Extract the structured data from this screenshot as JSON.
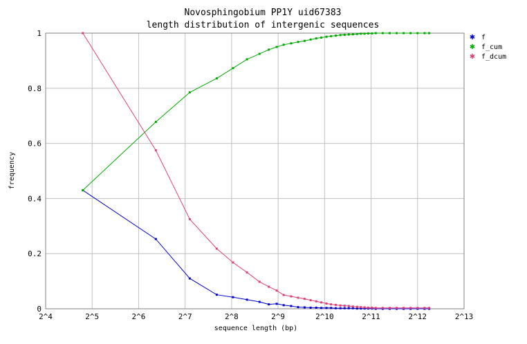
{
  "chart_data": {
    "type": "line",
    "title": "Novosphingobium PP1Y uid67383",
    "subtitle": "length distribution of intergenic sequences",
    "xlabel": "sequence length (bp)",
    "ylabel": "frequency",
    "x_scale": "log2",
    "xlim_log2": [
      4,
      13
    ],
    "ylim": [
      0,
      1
    ],
    "grid": true,
    "legend_position": "right",
    "x_ticks": [
      {
        "v": 4,
        "label": "2^4"
      },
      {
        "v": 5,
        "label": "2^5"
      },
      {
        "v": 6,
        "label": "2^6"
      },
      {
        "v": 7,
        "label": "2^7"
      },
      {
        "v": 8,
        "label": "2^8"
      },
      {
        "v": 9,
        "label": "2^9"
      },
      {
        "v": 10,
        "label": "2^10"
      },
      {
        "v": 11,
        "label": "2^11"
      },
      {
        "v": 12,
        "label": "2^12"
      },
      {
        "v": 13,
        "label": "2^13"
      }
    ],
    "y_ticks": [
      {
        "v": 0,
        "label": "0"
      },
      {
        "v": 0.2,
        "label": "0.2"
      },
      {
        "v": 0.4,
        "label": "0.4"
      },
      {
        "v": 0.6,
        "label": "0.6"
      },
      {
        "v": 0.8,
        "label": "0.8"
      },
      {
        "v": 1,
        "label": "1"
      }
    ],
    "series": [
      {
        "name": "f",
        "color": "#0000cc",
        "points": [
          [
            4.8,
            0.43
          ],
          [
            6.37,
            0.253
          ],
          [
            7.1,
            0.11
          ],
          [
            7.68,
            0.051
          ],
          [
            8.03,
            0.042
          ],
          [
            8.33,
            0.033
          ],
          [
            8.6,
            0.025
          ],
          [
            8.8,
            0.016
          ],
          [
            8.97,
            0.018
          ],
          [
            9.12,
            0.013
          ],
          [
            9.28,
            0.01
          ],
          [
            9.43,
            0.006
          ],
          [
            9.57,
            0.005
          ],
          [
            9.7,
            0.004
          ],
          [
            9.82,
            0.004
          ],
          [
            9.93,
            0.003
          ],
          [
            10.04,
            0.003
          ],
          [
            10.14,
            0.003
          ],
          [
            10.24,
            0.002
          ],
          [
            10.34,
            0.002
          ],
          [
            10.43,
            0.002
          ],
          [
            10.52,
            0.002
          ],
          [
            10.61,
            0.002
          ],
          [
            10.7,
            0.001
          ],
          [
            10.78,
            0.001
          ],
          [
            10.86,
            0.001
          ],
          [
            10.94,
            0.001
          ],
          [
            11.02,
            0.001
          ],
          [
            11.1,
            0.0
          ],
          [
            11.25,
            0.0
          ],
          [
            11.4,
            0.0
          ],
          [
            11.55,
            0.0
          ],
          [
            11.7,
            0.0
          ],
          [
            11.85,
            0.0
          ],
          [
            12.0,
            0.0
          ],
          [
            12.15,
            0.0
          ],
          [
            12.25,
            0.0
          ]
        ]
      },
      {
        "name": "f_cum",
        "color": "#00aa00",
        "points": [
          [
            4.8,
            0.43
          ],
          [
            6.37,
            0.678
          ],
          [
            7.1,
            0.785
          ],
          [
            7.68,
            0.836
          ],
          [
            8.03,
            0.873
          ],
          [
            8.33,
            0.905
          ],
          [
            8.6,
            0.925
          ],
          [
            8.8,
            0.94
          ],
          [
            8.97,
            0.95
          ],
          [
            9.12,
            0.958
          ],
          [
            9.28,
            0.963
          ],
          [
            9.43,
            0.968
          ],
          [
            9.57,
            0.972
          ],
          [
            9.7,
            0.977
          ],
          [
            9.82,
            0.981
          ],
          [
            9.93,
            0.984
          ],
          [
            10.04,
            0.987
          ],
          [
            10.14,
            0.989
          ],
          [
            10.24,
            0.991
          ],
          [
            10.34,
            0.993
          ],
          [
            10.43,
            0.994
          ],
          [
            10.52,
            0.995
          ],
          [
            10.61,
            0.996
          ],
          [
            10.7,
            0.997
          ],
          [
            10.78,
            0.998
          ],
          [
            10.86,
            0.998
          ],
          [
            10.94,
            0.999
          ],
          [
            11.02,
            0.999
          ],
          [
            11.1,
            1.0
          ],
          [
            11.25,
            1.0
          ],
          [
            11.4,
            1.0
          ],
          [
            11.55,
            1.0
          ],
          [
            11.7,
            1.0
          ],
          [
            11.85,
            1.0
          ],
          [
            12.0,
            1.0
          ],
          [
            12.15,
            1.0
          ],
          [
            12.25,
            1.0
          ]
        ]
      },
      {
        "name": "f_dcum",
        "color": "#e0407a",
        "points": [
          [
            4.8,
            1.0
          ],
          [
            6.37,
            0.575
          ],
          [
            7.1,
            0.325
          ],
          [
            7.68,
            0.218
          ],
          [
            8.03,
            0.168
          ],
          [
            8.33,
            0.132
          ],
          [
            8.6,
            0.098
          ],
          [
            8.8,
            0.08
          ],
          [
            8.97,
            0.066
          ],
          [
            9.12,
            0.05
          ],
          [
            9.28,
            0.045
          ],
          [
            9.43,
            0.04
          ],
          [
            9.57,
            0.036
          ],
          [
            9.7,
            0.031
          ],
          [
            9.82,
            0.027
          ],
          [
            9.93,
            0.023
          ],
          [
            10.04,
            0.019
          ],
          [
            10.14,
            0.016
          ],
          [
            10.24,
            0.014
          ],
          [
            10.34,
            0.012
          ],
          [
            10.43,
            0.011
          ],
          [
            10.52,
            0.01
          ],
          [
            10.61,
            0.008
          ],
          [
            10.7,
            0.007
          ],
          [
            10.78,
            0.006
          ],
          [
            10.86,
            0.005
          ],
          [
            10.94,
            0.004
          ],
          [
            11.02,
            0.004
          ],
          [
            11.1,
            0.003
          ],
          [
            11.25,
            0.003
          ],
          [
            11.4,
            0.003
          ],
          [
            11.55,
            0.003
          ],
          [
            11.7,
            0.003
          ],
          [
            11.85,
            0.003
          ],
          [
            12.0,
            0.003
          ],
          [
            12.15,
            0.003
          ],
          [
            12.25,
            0.003
          ]
        ]
      }
    ]
  }
}
